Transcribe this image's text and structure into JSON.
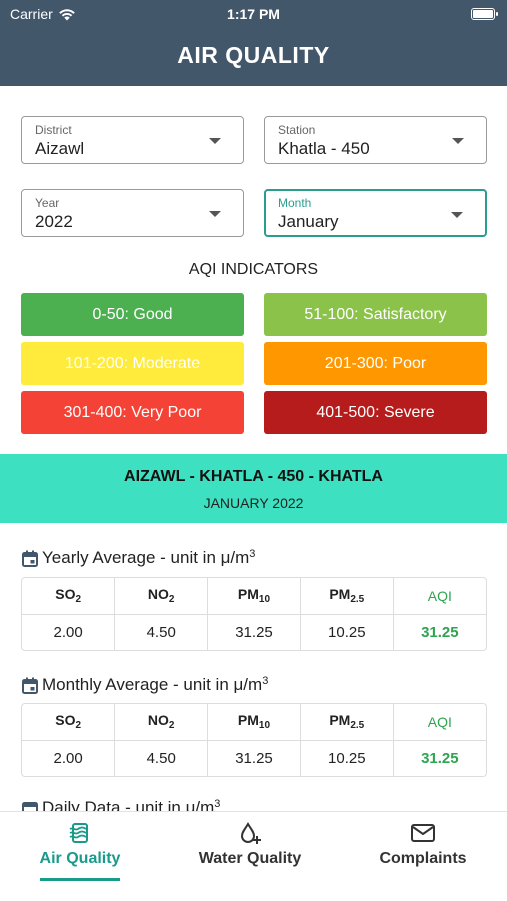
{
  "status_bar": {
    "carrier": "Carrier",
    "time": "1:17 PM"
  },
  "header": {
    "title": "AIR QUALITY"
  },
  "filters": {
    "district": {
      "label": "District",
      "value": "Aizawl"
    },
    "station": {
      "label": "Station",
      "value": "Khatla - 450"
    },
    "year": {
      "label": "Year",
      "value": "2022"
    },
    "month": {
      "label": "Month",
      "value": "January"
    }
  },
  "aqi_indicators": {
    "title": "AQI INDICATORS",
    "items": [
      {
        "label": "0-50: Good",
        "color": "#4caf50"
      },
      {
        "label": "51-100: Satisfactory",
        "color": "#8bc34a"
      },
      {
        "label": "101-200: Moderate",
        "color": "#ffeb3b"
      },
      {
        "label": "201-300: Poor",
        "color": "#ff9800"
      },
      {
        "label": "301-400: Very Poor",
        "color": "#f44336"
      },
      {
        "label": "401-500: Severe",
        "color": "#b71c1c"
      }
    ]
  },
  "banner": {
    "location": "AIZAWL - KHATLA - 450 - KHATLA",
    "period": "JANUARY 2022"
  },
  "yearly": {
    "title": "Yearly Average - unit in μ/m",
    "unit_exp": "3",
    "headers": {
      "so2": "SO",
      "so2_sub": "2",
      "no2": "NO",
      "no2_sub": "2",
      "pm10": "PM",
      "pm10_sub": "10",
      "pm25": "PM",
      "pm25_sub": "2.5",
      "aqi": "AQI"
    },
    "values": {
      "so2": "2.00",
      "no2": "4.50",
      "pm10": "31.25",
      "pm25": "10.25",
      "aqi": "31.25"
    }
  },
  "monthly": {
    "title": "Monthly Average - unit in μ/m",
    "unit_exp": "3",
    "headers": {
      "so2": "SO",
      "so2_sub": "2",
      "no2": "NO",
      "no2_sub": "2",
      "pm10": "PM",
      "pm10_sub": "10",
      "pm25": "PM",
      "pm25_sub": "2.5",
      "aqi": "AQI"
    },
    "values": {
      "so2": "2.00",
      "no2": "4.50",
      "pm10": "31.25",
      "pm25": "10.25",
      "aqi": "31.25"
    }
  },
  "daily": {
    "title": "Daily Data - unit in μ/m",
    "unit_exp": "3"
  },
  "tabs": [
    {
      "label": "Air Quality",
      "icon": "air-quality-icon",
      "active": true
    },
    {
      "label": "Water Quality",
      "icon": "water-drop-icon",
      "active": false
    },
    {
      "label": "Complaints",
      "icon": "mail-icon",
      "active": false
    }
  ],
  "colors": {
    "header_bg": "#43576b",
    "banner_bg": "#3de0c0",
    "accent": "#1a9a8a",
    "aqi_text": "#2ea44f"
  }
}
